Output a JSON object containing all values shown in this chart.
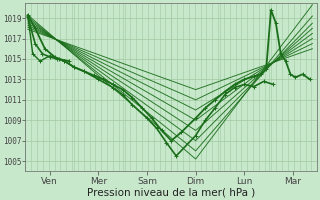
{
  "background_color": "#c8e8cc",
  "grid_color": "#a0c8a0",
  "line_color": "#1a6e1a",
  "xlabel": "Pression niveau de la mer( hPa )",
  "xlabel_fontsize": 7.5,
  "yticks": [
    1005,
    1007,
    1009,
    1011,
    1013,
    1015,
    1017,
    1019
  ],
  "ylim": [
    1004.0,
    1020.5
  ],
  "days": [
    "Ven",
    "Mer",
    "Sam",
    "Dim",
    "Lun",
    "Mar"
  ],
  "day_positions": [
    0.5,
    1.5,
    2.5,
    3.5,
    4.5,
    5.5
  ],
  "xlim": [
    0,
    6.0
  ],
  "smooth_lines": [
    [
      0.05,
      1019.3,
      3.5,
      1005.2,
      5.9,
      1020.3
    ],
    [
      0.05,
      1019.1,
      3.5,
      1006.0,
      5.9,
      1019.2
    ],
    [
      0.05,
      1018.9,
      3.5,
      1007.0,
      5.9,
      1018.5
    ],
    [
      0.05,
      1018.7,
      3.5,
      1008.0,
      5.9,
      1018.0
    ],
    [
      0.05,
      1018.5,
      3.5,
      1009.0,
      5.9,
      1017.5
    ],
    [
      0.05,
      1018.3,
      3.5,
      1010.0,
      5.9,
      1017.0
    ],
    [
      0.05,
      1018.1,
      3.5,
      1011.0,
      5.9,
      1016.5
    ],
    [
      0.05,
      1017.9,
      3.5,
      1012.0,
      5.9,
      1016.0
    ]
  ],
  "jagged_lines": [
    {
      "x": [
        0.05,
        0.2,
        0.4,
        0.6,
        0.8,
        1.0,
        1.2,
        1.4,
        1.6,
        1.8,
        2.0,
        2.2,
        2.4,
        2.6,
        2.8,
        3.0,
        3.2,
        3.5,
        3.7,
        3.9,
        4.1,
        4.3,
        4.5,
        4.7,
        4.85,
        4.95,
        5.05,
        5.15,
        5.25,
        5.35,
        5.45,
        5.55,
        5.7,
        5.85
      ],
      "y": [
        1019.3,
        1018.0,
        1016.0,
        1015.2,
        1014.8,
        1014.2,
        1013.8,
        1013.4,
        1013.0,
        1012.5,
        1012.0,
        1011.2,
        1010.2,
        1009.2,
        1008.0,
        1007.0,
        1007.8,
        1009.2,
        1010.2,
        1011.0,
        1011.8,
        1012.5,
        1013.0,
        1013.3,
        1013.5,
        1014.0,
        1019.8,
        1018.5,
        1015.5,
        1014.8,
        1013.5,
        1013.2,
        1013.5,
        1013.0
      ],
      "lw": 1.3,
      "marker": true
    },
    {
      "x": [
        0.05,
        0.2,
        0.35,
        0.5,
        0.65,
        0.8,
        1.0,
        1.2,
        1.5,
        1.8,
        2.0,
        2.2,
        2.5,
        2.7,
        2.9,
        3.1,
        3.5,
        3.7,
        3.9,
        4.1,
        4.3,
        4.5,
        4.7,
        4.9,
        5.1
      ],
      "y": [
        1019.1,
        1016.5,
        1015.5,
        1015.2,
        1015.0,
        1014.8,
        1014.2,
        1013.8,
        1013.0,
        1012.2,
        1011.5,
        1010.5,
        1009.2,
        1008.2,
        1006.8,
        1005.5,
        1007.5,
        1009.0,
        1010.2,
        1011.5,
        1012.2,
        1012.5,
        1012.3,
        1012.8,
        1012.5
      ],
      "lw": 1.2,
      "marker": true
    },
    {
      "x": [
        0.05,
        0.15,
        0.3,
        0.5,
        0.7,
        0.9
      ],
      "y": [
        1019.2,
        1015.5,
        1014.8,
        1015.3,
        1015.0,
        1014.8
      ],
      "lw": 1.0,
      "marker": true
    }
  ]
}
